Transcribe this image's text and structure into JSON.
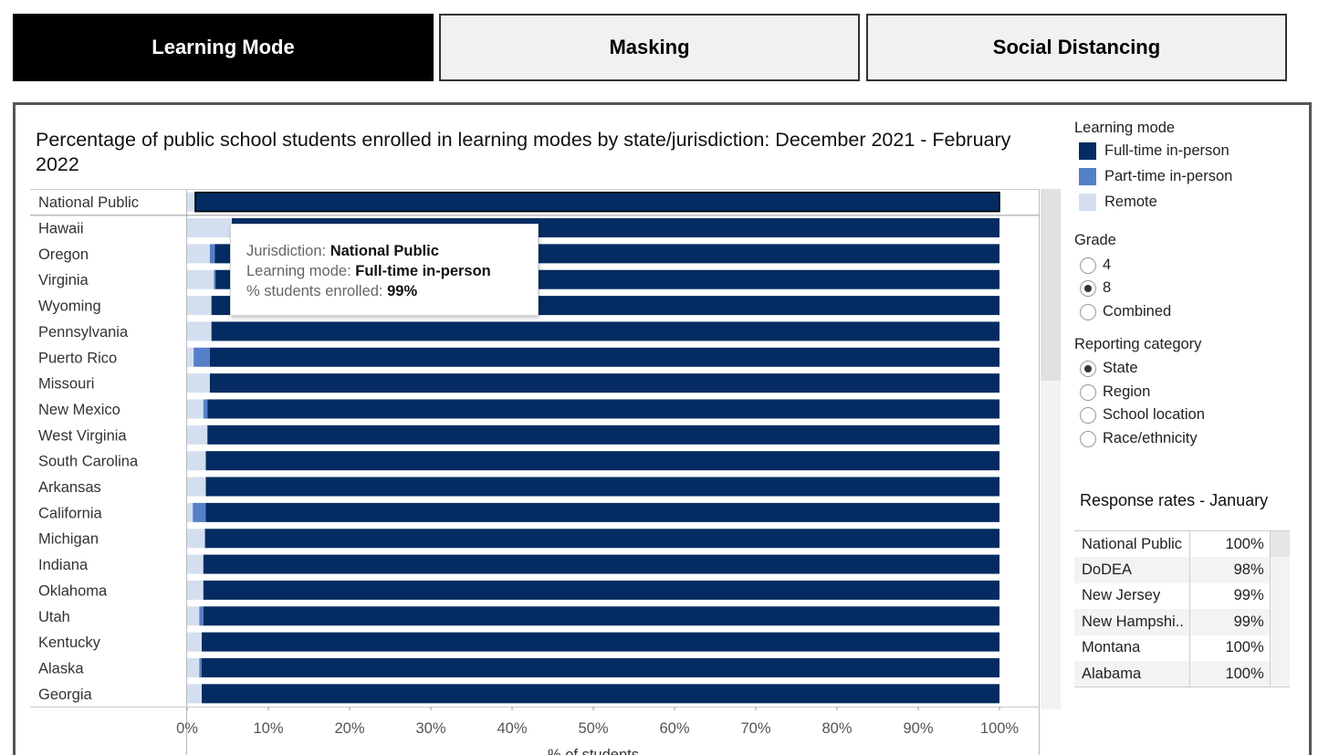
{
  "tabs": [
    {
      "label": "Learning Mode",
      "active": true
    },
    {
      "label": "Masking",
      "active": false
    },
    {
      "label": "Social Distancing",
      "active": false
    }
  ],
  "chart_title": "Percentage of public school students enrolled in learning modes by state/jurisdiction: December 2021 - February 2022",
  "legend": {
    "title": "Learning mode",
    "items": [
      {
        "label": "Full-time in-person",
        "color": "#042c62"
      },
      {
        "label": "Part-time in-person",
        "color": "#5580c8"
      },
      {
        "label": "Remote",
        "color": "#d3dff0"
      }
    ]
  },
  "grade": {
    "title": "Grade",
    "options": [
      {
        "label": "4",
        "selected": false
      },
      {
        "label": "8",
        "selected": true
      },
      {
        "label": "Combined",
        "selected": false
      }
    ]
  },
  "reporting": {
    "title": "Reporting category",
    "options": [
      {
        "label": "State",
        "selected": true
      },
      {
        "label": "Region",
        "selected": false
      },
      {
        "label": "School location",
        "selected": false
      },
      {
        "label": "Race/ethnicity",
        "selected": false
      }
    ]
  },
  "response_rates": {
    "title": "Response rates - January",
    "rows": [
      {
        "name": "National Public",
        "value": "100%"
      },
      {
        "name": "DoDEA",
        "value": "98%"
      },
      {
        "name": "New Jersey",
        "value": "99%"
      },
      {
        "name": "New Hampshi..",
        "value": "99%"
      },
      {
        "name": "Montana",
        "value": "100%"
      },
      {
        "name": "Alabama",
        "value": "100%"
      }
    ]
  },
  "tooltip": {
    "jurisdiction_key": "Jurisdiction:",
    "jurisdiction_val": "National Public",
    "mode_key": "Learning mode:",
    "mode_val": "Full-time in-person",
    "pct_key": "% students enrolled:",
    "pct_val": "99%"
  },
  "chart_data": {
    "type": "bar",
    "orientation": "horizontal",
    "stacked": true,
    "categories": [
      "National Public",
      "Hawaii",
      "Oregon",
      "Virginia",
      "Wyoming",
      "Pennsylvania",
      "Puerto Rico",
      "Missouri",
      "New Mexico",
      "West Virginia",
      "South Carolina",
      "Arkansas",
      "California",
      "Michigan",
      "Indiana",
      "Oklahoma",
      "Utah",
      "Kentucky",
      "Alaska",
      "Georgia"
    ],
    "series": [
      {
        "name": "Remote",
        "values": [
          1,
          5.5,
          2.8,
          3.3,
          3.0,
          3.0,
          0.8,
          2.8,
          2.0,
          2.5,
          2.3,
          2.3,
          0.7,
          2.2,
          2.0,
          2.0,
          1.5,
          1.8,
          1.5,
          1.8
        ]
      },
      {
        "name": "Part-time in-person",
        "values": [
          0,
          0,
          0.6,
          0.2,
          0,
          0,
          2.0,
          0,
          0.5,
          0,
          0,
          0,
          1.6,
          0,
          0,
          0,
          0.5,
          0,
          0.3,
          0
        ]
      },
      {
        "name": "Full-time in-person",
        "values": [
          99,
          94.5,
          96.6,
          96.5,
          97.0,
          97.0,
          97.2,
          97.2,
          97.5,
          97.5,
          97.7,
          97.7,
          97.7,
          97.8,
          98.0,
          98.0,
          98.0,
          98.2,
          98.2,
          98.2
        ]
      }
    ],
    "x_ticks": [
      "0%",
      "10%",
      "20%",
      "30%",
      "40%",
      "50%",
      "60%",
      "70%",
      "80%",
      "90%",
      "100%"
    ],
    "xlim": [
      0,
      100
    ],
    "xlabel": "% of students",
    "highlighted": "National Public"
  }
}
